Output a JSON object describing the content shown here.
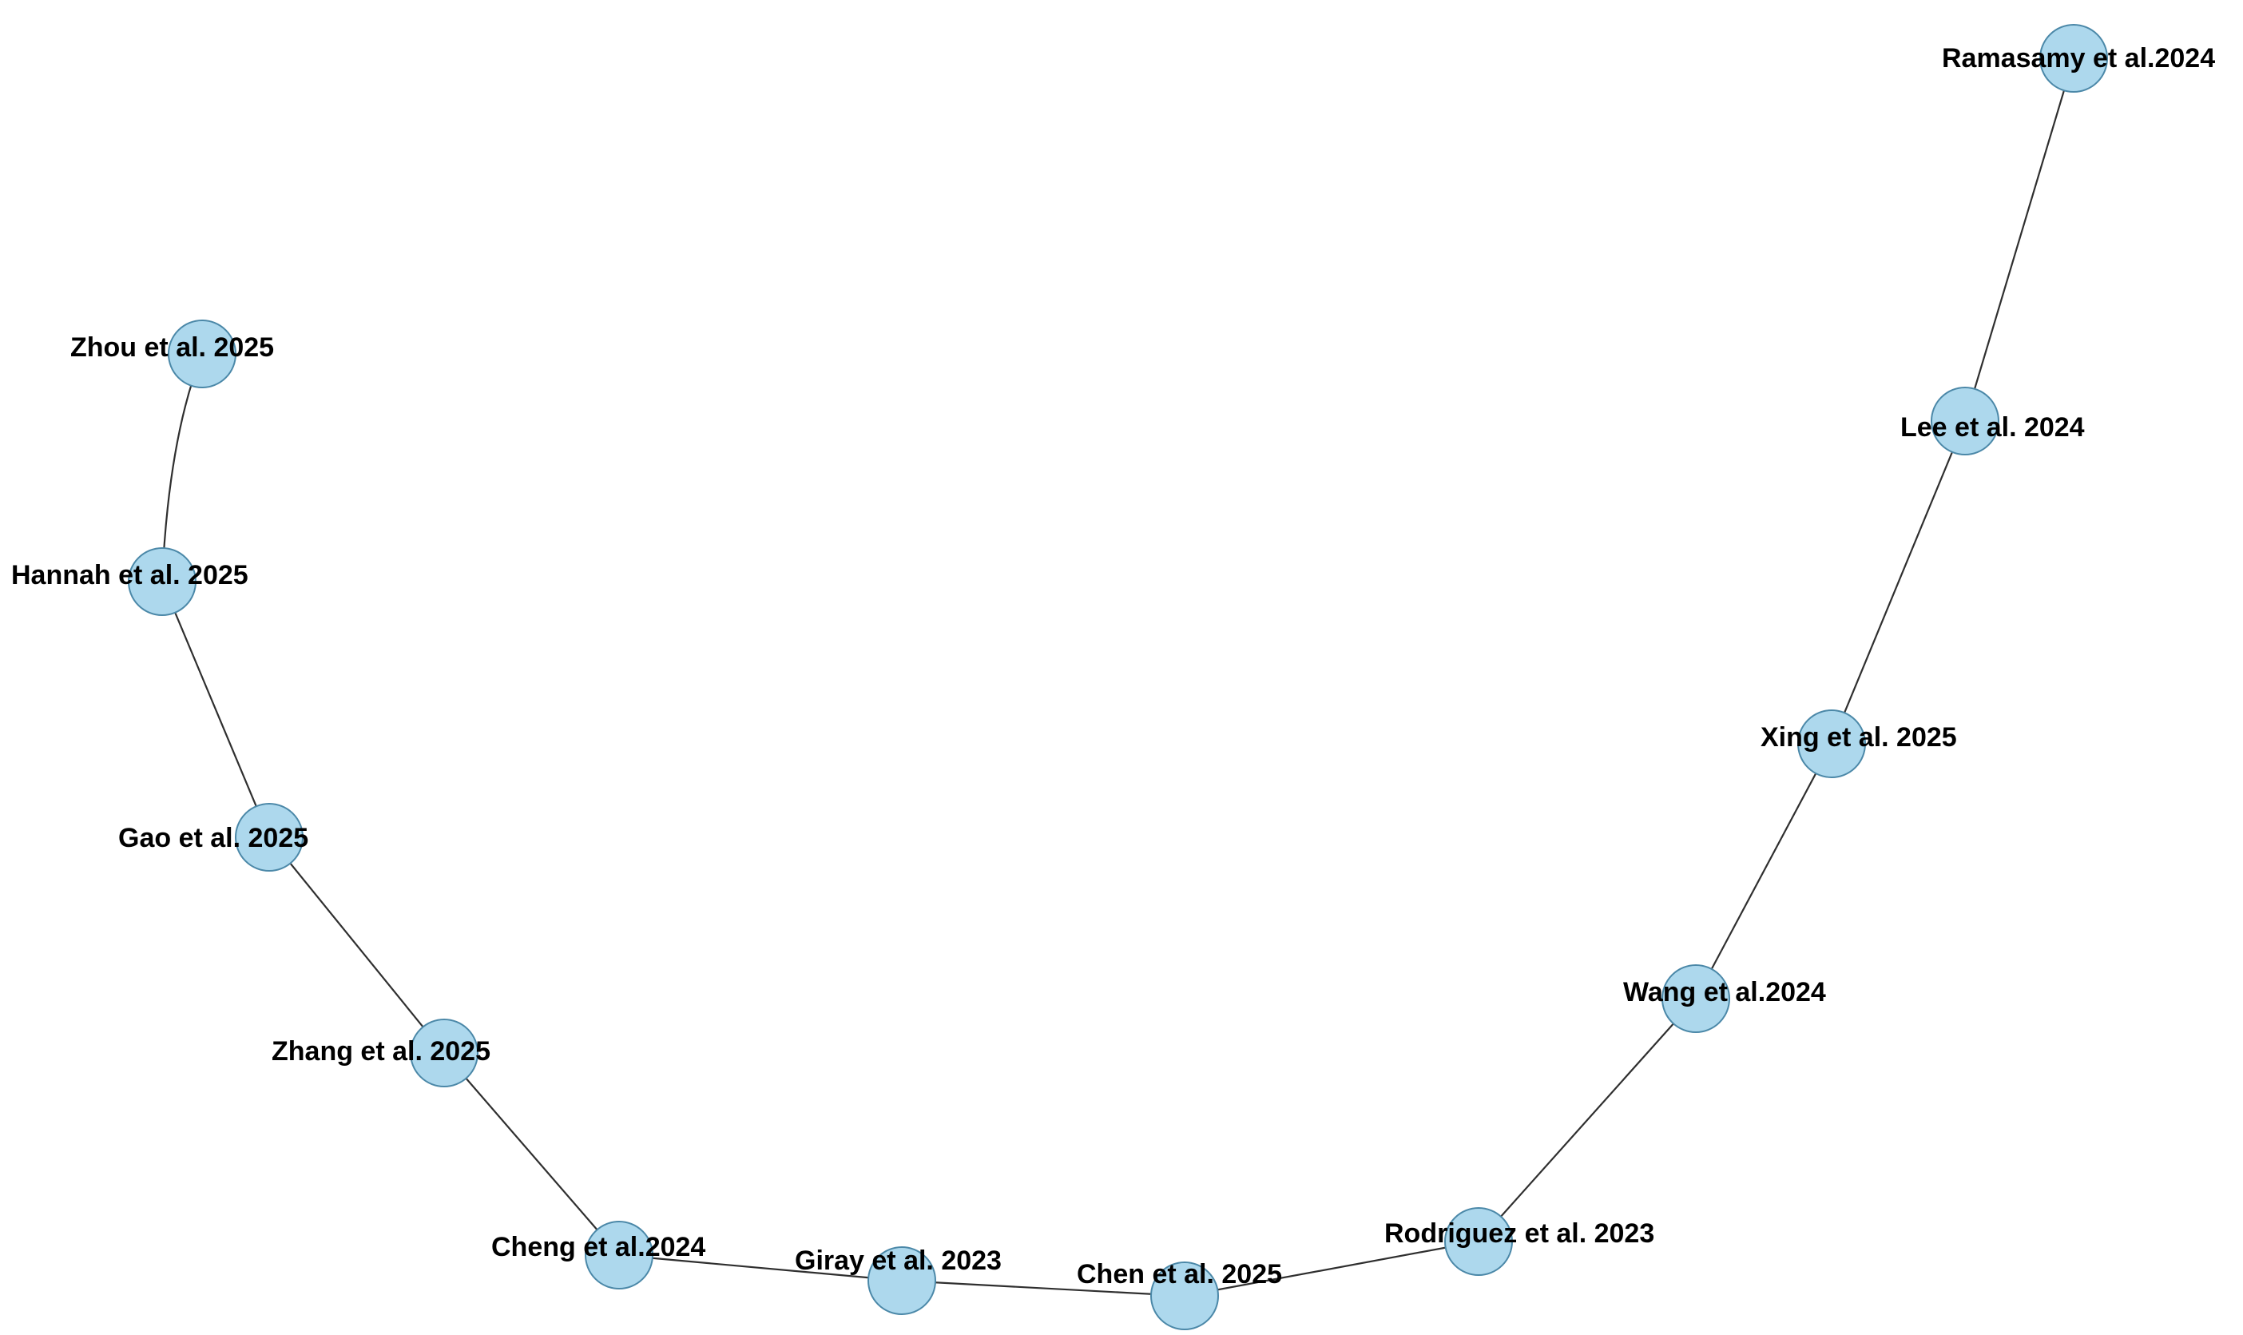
{
  "graph": {
    "node_color": "#add8ed",
    "node_border_color": "#4b88a8",
    "edge_color": "#2f2f2f",
    "label_color": "#000000",
    "nodes": [
      {
        "id": "ramasamy",
        "label": "Ramasamy et al.2024"
      },
      {
        "id": "lee",
        "label": "Lee et al. 2024"
      },
      {
        "id": "xing",
        "label": "Xing et al. 2025"
      },
      {
        "id": "wang",
        "label": "Wang et al.2024"
      },
      {
        "id": "rodriguez",
        "label": "Rodriguez et al. 2023"
      },
      {
        "id": "chen",
        "label": "Chen et al. 2025"
      },
      {
        "id": "giray",
        "label": "Giray et al. 2023"
      },
      {
        "id": "cheng",
        "label": "Cheng et al.2024"
      },
      {
        "id": "zhang",
        "label": "Zhang et al. 2025"
      },
      {
        "id": "gao",
        "label": "Gao et al. 2025"
      },
      {
        "id": "hannah",
        "label": "Hannah et al. 2025"
      },
      {
        "id": "zhou",
        "label": "Zhou et al. 2025"
      }
    ],
    "edges": [
      [
        "ramasamy",
        "lee"
      ],
      [
        "lee",
        "xing"
      ],
      [
        "xing",
        "wang"
      ],
      [
        "wang",
        "rodriguez"
      ],
      [
        "rodriguez",
        "chen"
      ],
      [
        "chen",
        "giray"
      ],
      [
        "giray",
        "cheng"
      ],
      [
        "cheng",
        "zhang"
      ],
      [
        "zhang",
        "gao"
      ],
      [
        "gao",
        "hannah"
      ],
      [
        "hannah",
        "zhou"
      ]
    ]
  }
}
